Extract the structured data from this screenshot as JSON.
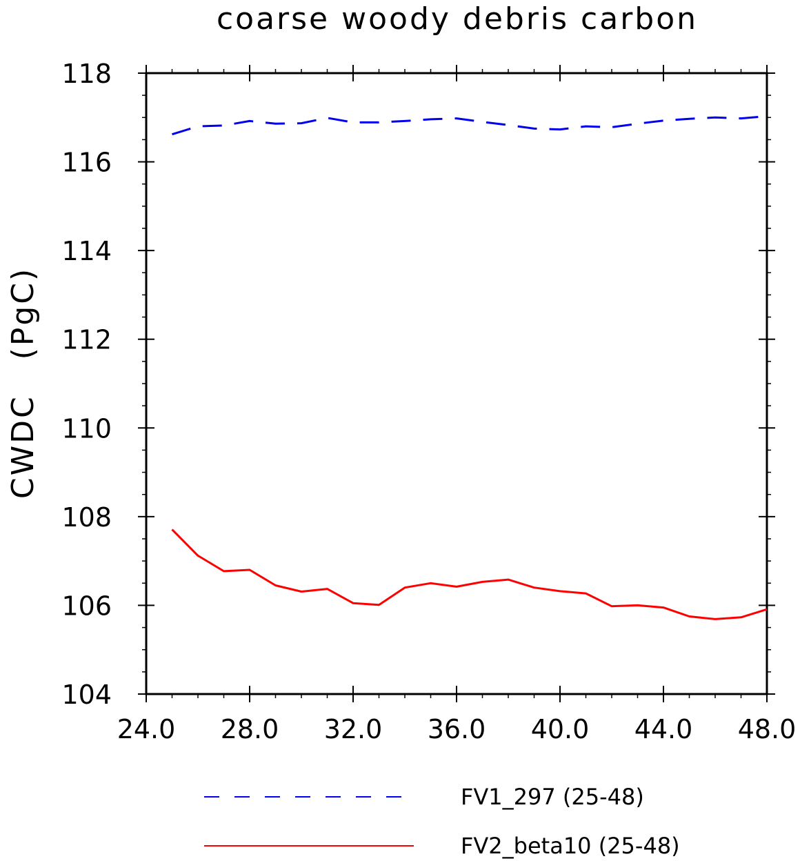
{
  "chart_data": {
    "type": "line",
    "title": "coarse woody debris carbon",
    "xlabel": "",
    "ylabel": "CWDC   (PgC)",
    "xlim": [
      24.0,
      48.0
    ],
    "ylim": [
      104,
      118
    ],
    "x_ticks": [
      "24.0",
      "28.0",
      "32.0",
      "36.0",
      "40.0",
      "44.0",
      "48.0"
    ],
    "y_ticks": [
      "104",
      "106",
      "108",
      "110",
      "112",
      "114",
      "116",
      "118"
    ],
    "legend_position": "bottom",
    "x": [
      25,
      26,
      27,
      28,
      29,
      30,
      31,
      32,
      33,
      34,
      35,
      36,
      37,
      38,
      39,
      40,
      41,
      42,
      43,
      44,
      45,
      46,
      47,
      48
    ],
    "series": [
      {
        "name": "FV1_297 (25-48)",
        "color": "#0000ee",
        "style": "dashed",
        "values": [
          116.62,
          116.8,
          116.82,
          116.92,
          116.86,
          116.87,
          116.99,
          116.89,
          116.89,
          116.92,
          116.96,
          116.98,
          116.9,
          116.83,
          116.75,
          116.73,
          116.8,
          116.78,
          116.86,
          116.93,
          116.97,
          117.0,
          116.98,
          117.03
        ]
      },
      {
        "name": "FV2_beta10 (25-48)",
        "color": "#ff0000",
        "style": "solid",
        "values": [
          107.71,
          107.12,
          106.77,
          106.8,
          106.45,
          106.31,
          106.37,
          106.05,
          106.01,
          106.4,
          106.5,
          106.42,
          106.53,
          106.58,
          106.4,
          106.32,
          106.27,
          105.98,
          106.0,
          105.95,
          105.75,
          105.69,
          105.73,
          105.91
        ]
      }
    ]
  }
}
